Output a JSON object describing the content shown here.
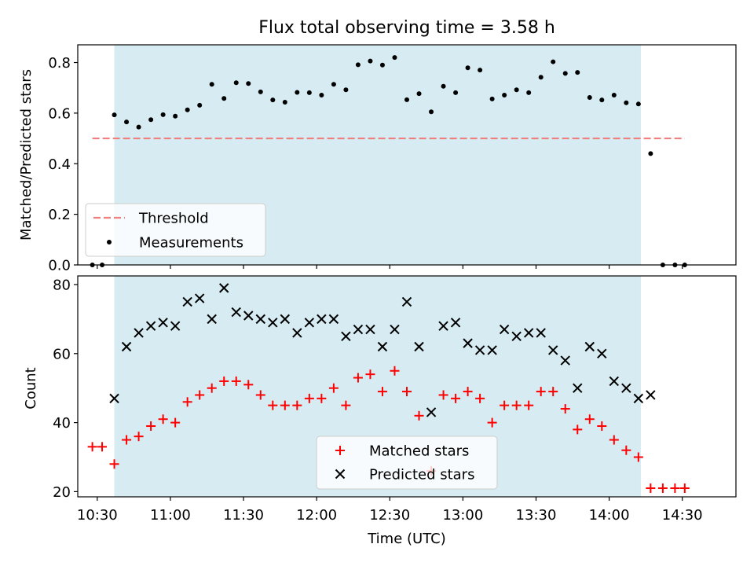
{
  "title": "Flux total observing time = 3.58 h",
  "colors": {
    "shade": "#add8e6",
    "threshold": "#f08080",
    "measurements": "#000000",
    "matched": "#ff0000",
    "predicted": "#000000"
  },
  "chart_data": [
    {
      "type": "scatter",
      "ylabel": "Matched/Predicted stars",
      "xlim": [
        "10:22",
        "14:52"
      ],
      "ylim": [
        0,
        0.87
      ],
      "yticks": [
        "0.0",
        "0.2",
        "0.4",
        "0.6",
        "0.8"
      ],
      "shaded_span": [
        "10:37",
        "14:13"
      ],
      "threshold": {
        "name": "Threshold",
        "y": 0.5,
        "x_range": [
          "10:28",
          "14:31"
        ]
      },
      "legend": {
        "position": "lower left",
        "entries": [
          "Threshold",
          "Measurements"
        ]
      },
      "series": [
        {
          "name": "Measurements",
          "points": [
            [
              "10:28",
              0.0
            ],
            [
              "10:32",
              0.0
            ],
            [
              "10:37",
              0.593
            ],
            [
              "10:42",
              0.565
            ],
            [
              "10:47",
              0.545
            ],
            [
              "10:52",
              0.574
            ],
            [
              "10:57",
              0.594
            ],
            [
              "11:02",
              0.588
            ],
            [
              "11:07",
              0.613
            ],
            [
              "11:12",
              0.631
            ],
            [
              "11:17",
              0.714
            ],
            [
              "11:22",
              0.658
            ],
            [
              "11:27",
              0.72
            ],
            [
              "11:32",
              0.717
            ],
            [
              "11:37",
              0.684
            ],
            [
              "11:42",
              0.652
            ],
            [
              "11:47",
              0.643
            ],
            [
              "11:52",
              0.682
            ],
            [
              "11:57",
              0.681
            ],
            [
              "12:02",
              0.671
            ],
            [
              "12:07",
              0.714
            ],
            [
              "12:12",
              0.692
            ],
            [
              "12:17",
              0.791
            ],
            [
              "12:22",
              0.806
            ],
            [
              "12:27",
              0.79
            ],
            [
              "12:32",
              0.82
            ],
            [
              "12:37",
              0.653
            ],
            [
              "12:42",
              0.677
            ],
            [
              "12:47",
              0.605
            ],
            [
              "12:52",
              0.706
            ],
            [
              "12:57",
              0.681
            ],
            [
              "13:02",
              0.779
            ],
            [
              "13:07",
              0.77
            ],
            [
              "13:12",
              0.656
            ],
            [
              "13:17",
              0.671
            ],
            [
              "13:22",
              0.692
            ],
            [
              "13:27",
              0.681
            ],
            [
              "13:32",
              0.742
            ],
            [
              "13:37",
              0.803
            ],
            [
              "13:42",
              0.757
            ],
            [
              "13:47",
              0.761
            ],
            [
              "13:52",
              0.662
            ],
            [
              "13:57",
              0.652
            ],
            [
              "14:02",
              0.671
            ],
            [
              "14:07",
              0.641
            ],
            [
              "14:12",
              0.636
            ],
            [
              "14:17",
              0.44
            ],
            [
              "14:22",
              0.0
            ],
            [
              "14:27",
              0.0
            ],
            [
              "14:31",
              0.0
            ]
          ]
        }
      ]
    },
    {
      "type": "scatter",
      "ylabel": "Count",
      "xlabel": "Time (UTC)",
      "xlim": [
        "10:22",
        "14:52"
      ],
      "ylim": [
        18.5,
        82.5
      ],
      "yticks": [
        "20",
        "40",
        "60",
        "80"
      ],
      "xticks": [
        "10:30",
        "11:00",
        "11:30",
        "12:00",
        "12:30",
        "13:00",
        "13:30",
        "14:00",
        "14:30"
      ],
      "shaded_span": [
        "10:37",
        "14:13"
      ],
      "legend": {
        "position": "lower center",
        "entries": [
          "Matched stars",
          "Predicted stars"
        ]
      },
      "series": [
        {
          "name": "Matched stars",
          "marker": "+",
          "points": [
            [
              "10:28",
              33
            ],
            [
              "10:32",
              33
            ],
            [
              "10:37",
              28
            ],
            [
              "10:42",
              35
            ],
            [
              "10:47",
              36
            ],
            [
              "10:52",
              39
            ],
            [
              "10:57",
              41
            ],
            [
              "11:02",
              40
            ],
            [
              "11:07",
              46
            ],
            [
              "11:12",
              48
            ],
            [
              "11:17",
              50
            ],
            [
              "11:22",
              52
            ],
            [
              "11:27",
              52
            ],
            [
              "11:32",
              51
            ],
            [
              "11:37",
              48
            ],
            [
              "11:42",
              45
            ],
            [
              "11:47",
              45
            ],
            [
              "11:52",
              45
            ],
            [
              "11:57",
              47
            ],
            [
              "12:02",
              47
            ],
            [
              "12:07",
              50
            ],
            [
              "12:12",
              45
            ],
            [
              "12:17",
              53
            ],
            [
              "12:22",
              54
            ],
            [
              "12:27",
              49
            ],
            [
              "12:32",
              55
            ],
            [
              "12:37",
              49
            ],
            [
              "12:42",
              42
            ],
            [
              "12:47",
              26
            ],
            [
              "12:52",
              48
            ],
            [
              "12:57",
              47
            ],
            [
              "13:02",
              49
            ],
            [
              "13:07",
              47
            ],
            [
              "13:12",
              40
            ],
            [
              "13:17",
              45
            ],
            [
              "13:22",
              45
            ],
            [
              "13:27",
              45
            ],
            [
              "13:32",
              49
            ],
            [
              "13:37",
              49
            ],
            [
              "13:42",
              44
            ],
            [
              "13:47",
              38
            ],
            [
              "13:52",
              41
            ],
            [
              "13:57",
              39
            ],
            [
              "14:02",
              35
            ],
            [
              "14:07",
              32
            ],
            [
              "14:12",
              30
            ],
            [
              "14:17",
              21
            ],
            [
              "14:22",
              21
            ],
            [
              "14:27",
              21
            ],
            [
              "14:31",
              21
            ]
          ]
        },
        {
          "name": "Predicted stars",
          "marker": "x",
          "points": [
            [
              "10:37",
              47
            ],
            [
              "10:42",
              62
            ],
            [
              "10:47",
              66
            ],
            [
              "10:52",
              68
            ],
            [
              "10:57",
              69
            ],
            [
              "11:02",
              68
            ],
            [
              "11:07",
              75
            ],
            [
              "11:12",
              76
            ],
            [
              "11:17",
              70
            ],
            [
              "11:22",
              79
            ],
            [
              "11:27",
              72
            ],
            [
              "11:32",
              71
            ],
            [
              "11:37",
              70
            ],
            [
              "11:42",
              69
            ],
            [
              "11:47",
              70
            ],
            [
              "11:52",
              66
            ],
            [
              "11:57",
              69
            ],
            [
              "12:02",
              70
            ],
            [
              "12:07",
              70
            ],
            [
              "12:12",
              65
            ],
            [
              "12:17",
              67
            ],
            [
              "12:22",
              67
            ],
            [
              "12:27",
              62
            ],
            [
              "12:32",
              67
            ],
            [
              "12:37",
              75
            ],
            [
              "12:42",
              62
            ],
            [
              "12:47",
              43
            ],
            [
              "12:52",
              68
            ],
            [
              "12:57",
              69
            ],
            [
              "13:02",
              63
            ],
            [
              "13:07",
              61
            ],
            [
              "13:12",
              61
            ],
            [
              "13:17",
              67
            ],
            [
              "13:22",
              65
            ],
            [
              "13:27",
              66
            ],
            [
              "13:32",
              66
            ],
            [
              "13:37",
              61
            ],
            [
              "13:42",
              58
            ],
            [
              "13:47",
              50
            ],
            [
              "13:52",
              62
            ],
            [
              "13:57",
              60
            ],
            [
              "14:02",
              52
            ],
            [
              "14:07",
              50
            ],
            [
              "14:12",
              47
            ],
            [
              "14:17",
              48
            ]
          ]
        }
      ]
    }
  ]
}
